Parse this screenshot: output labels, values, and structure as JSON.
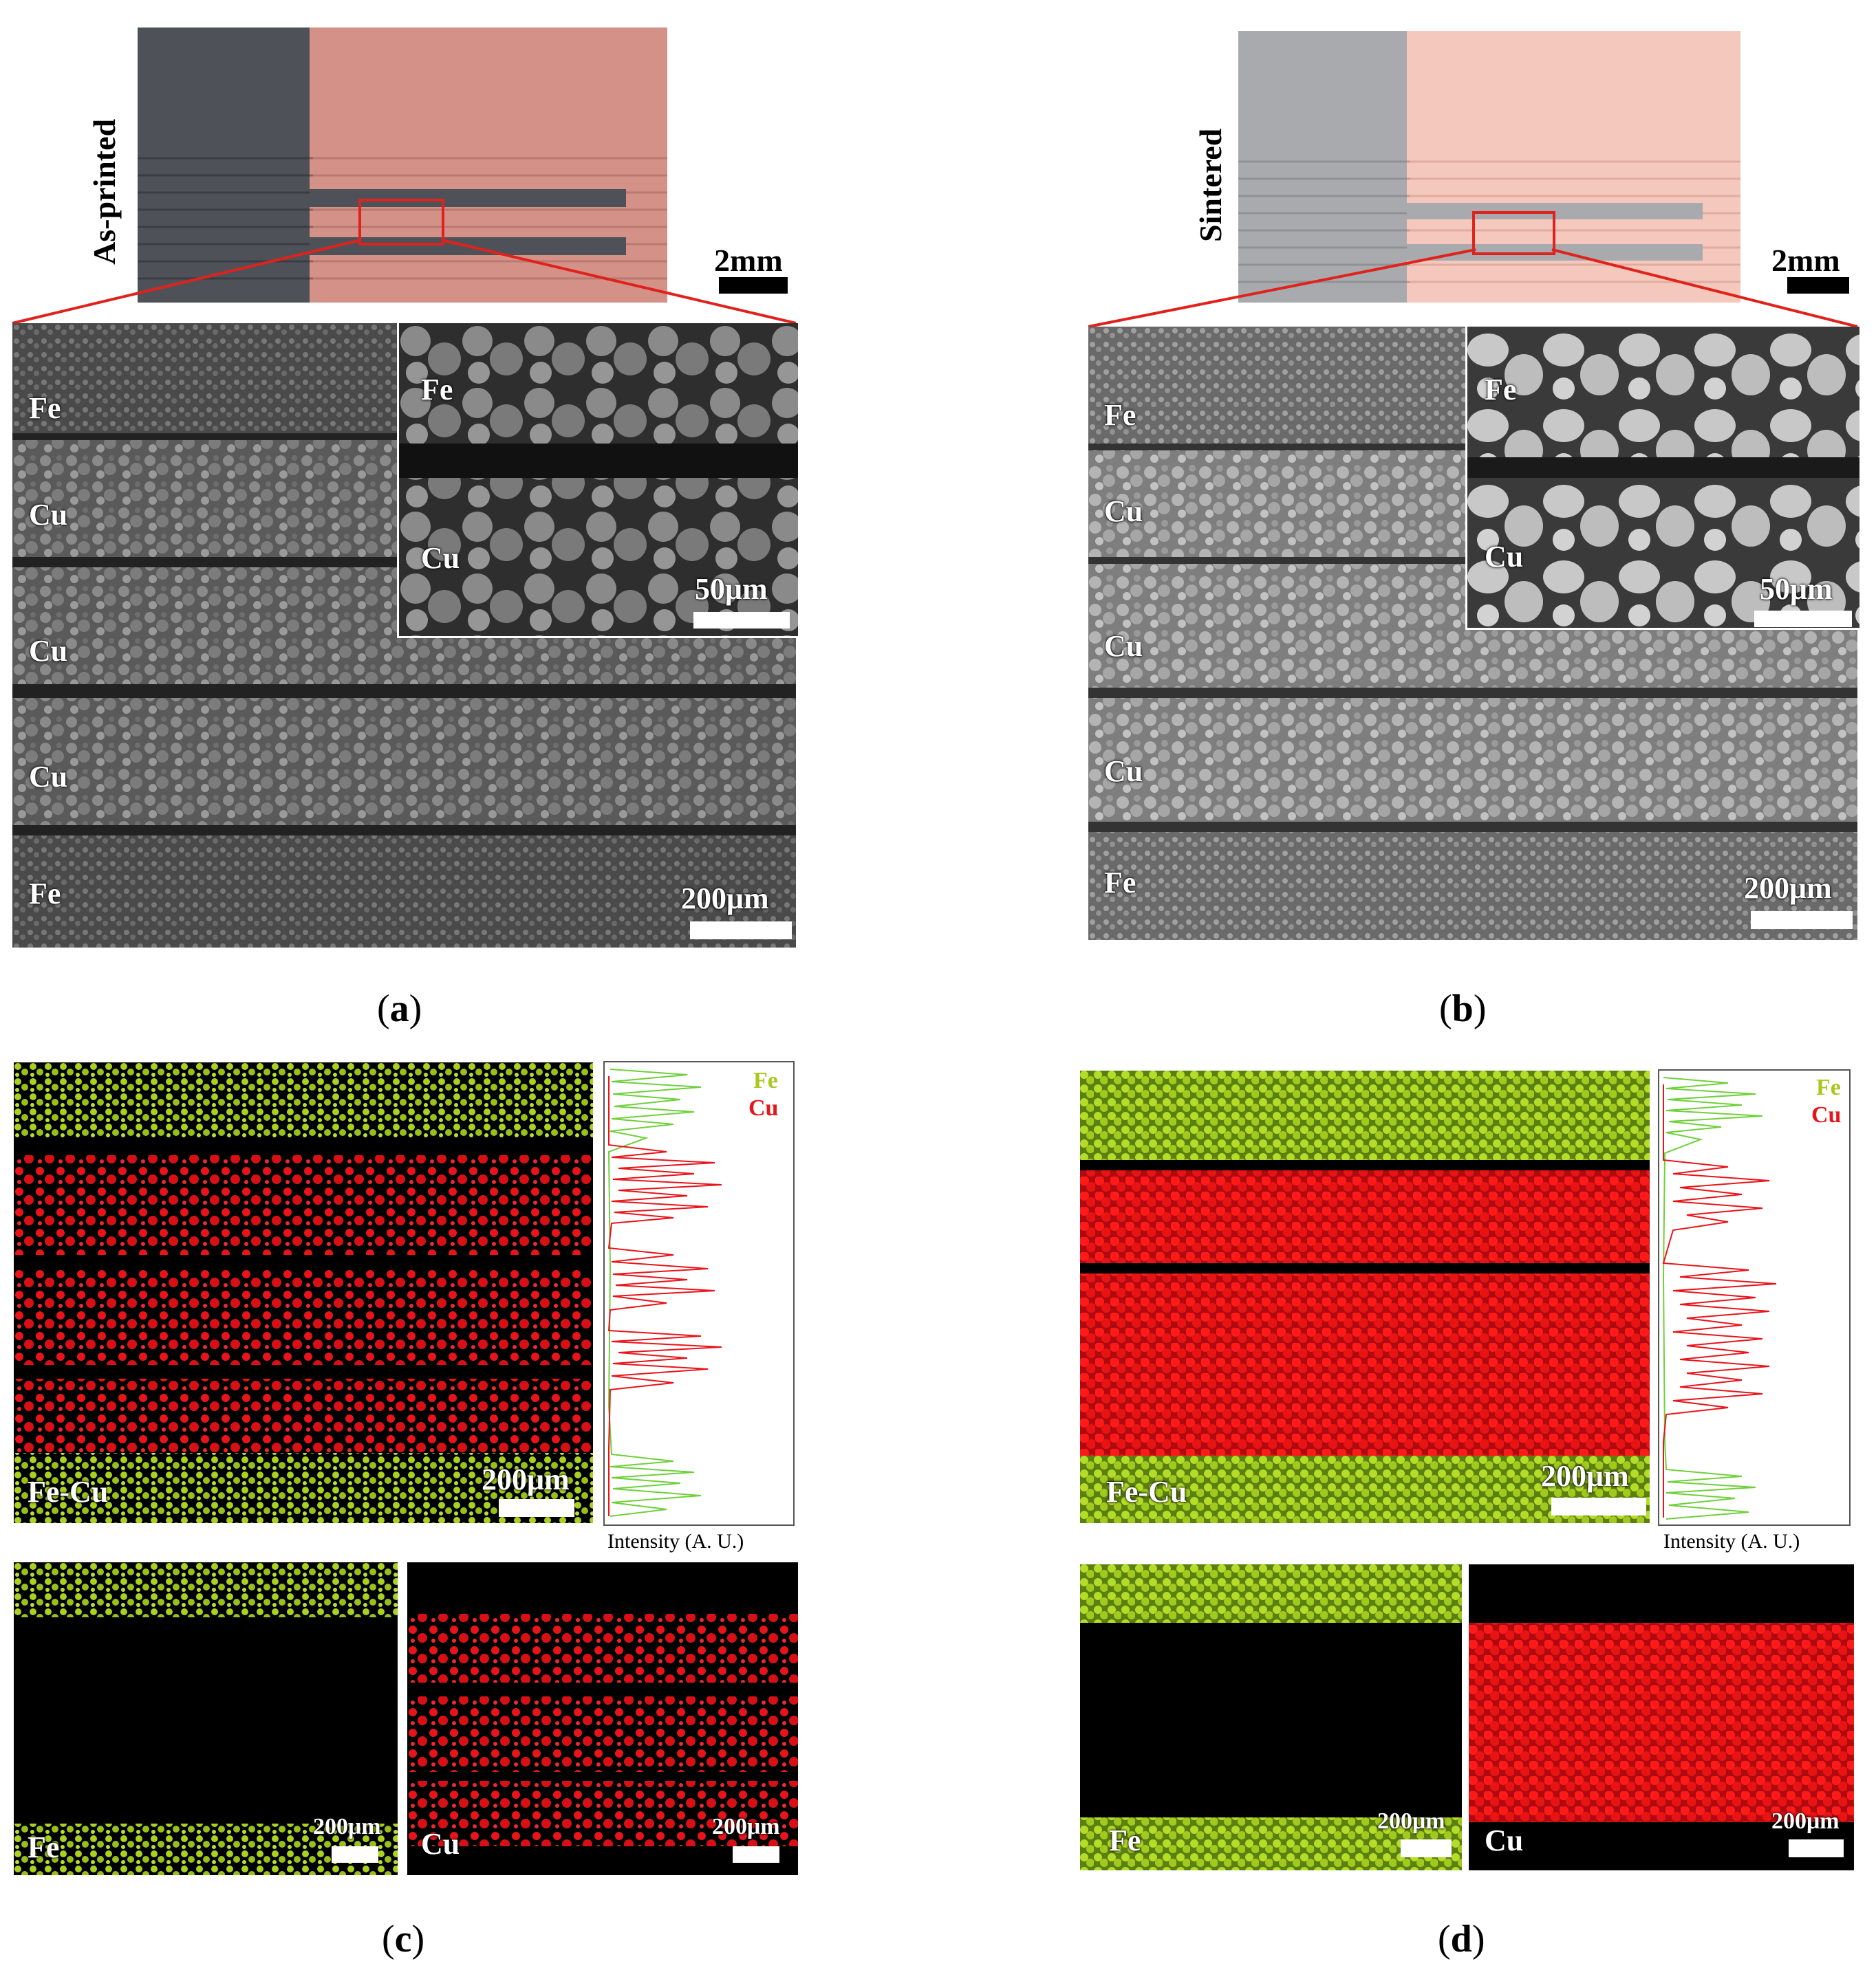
{
  "colors": {
    "fe": "#a8d21e",
    "cu": "#e8141a",
    "frame": "#e0221c"
  },
  "panel_a": {
    "side_label": "As-printed",
    "scale_top": "2mm",
    "label_fe_1": "Fe",
    "label_cu_1": "Cu",
    "label_cu_2": "Cu",
    "label_cu_3": "Cu",
    "label_fe_2": "Fe",
    "scale_main": "200μm",
    "inset_fe": "Fe",
    "inset_cu": "Cu",
    "inset_scale": "50μm",
    "caption_open": "(",
    "caption_letter": "a",
    "caption_close": ")"
  },
  "panel_b": {
    "side_label": "Sintered",
    "scale_top": "2mm",
    "label_fe_1": "Fe",
    "label_cu_1": "Cu",
    "label_cu_2": "Cu",
    "label_cu_3": "Cu",
    "label_fe_2": "Fe",
    "scale_main": "200μm",
    "inset_fe": "Fe",
    "inset_cu": "Cu",
    "inset_scale": "50μm",
    "caption_open": "(",
    "caption_letter": "b",
    "caption_close": ")"
  },
  "panel_c": {
    "map_label": "Fe-Cu",
    "map_scale": "200μm",
    "legend_fe": "Fe",
    "legend_cu": "Cu",
    "intensity_label": "Intensity (A. U.)",
    "fe_map_label": "Fe",
    "fe_map_scale": "200μm",
    "cu_map_label": "Cu",
    "cu_map_scale": "200μm",
    "caption_open": "(",
    "caption_letter": "c",
    "caption_close": ")"
  },
  "panel_d": {
    "map_label": "Fe-Cu",
    "map_scale": "200μm",
    "legend_fe": "Fe",
    "legend_cu": "Cu",
    "intensity_label": "Intensity (A. U.)",
    "fe_map_label": "Fe",
    "fe_map_scale": "200μm",
    "cu_map_label": "Cu",
    "cu_map_scale": "200μm",
    "caption_open": "(",
    "caption_letter": "d",
    "caption_close": ")"
  }
}
